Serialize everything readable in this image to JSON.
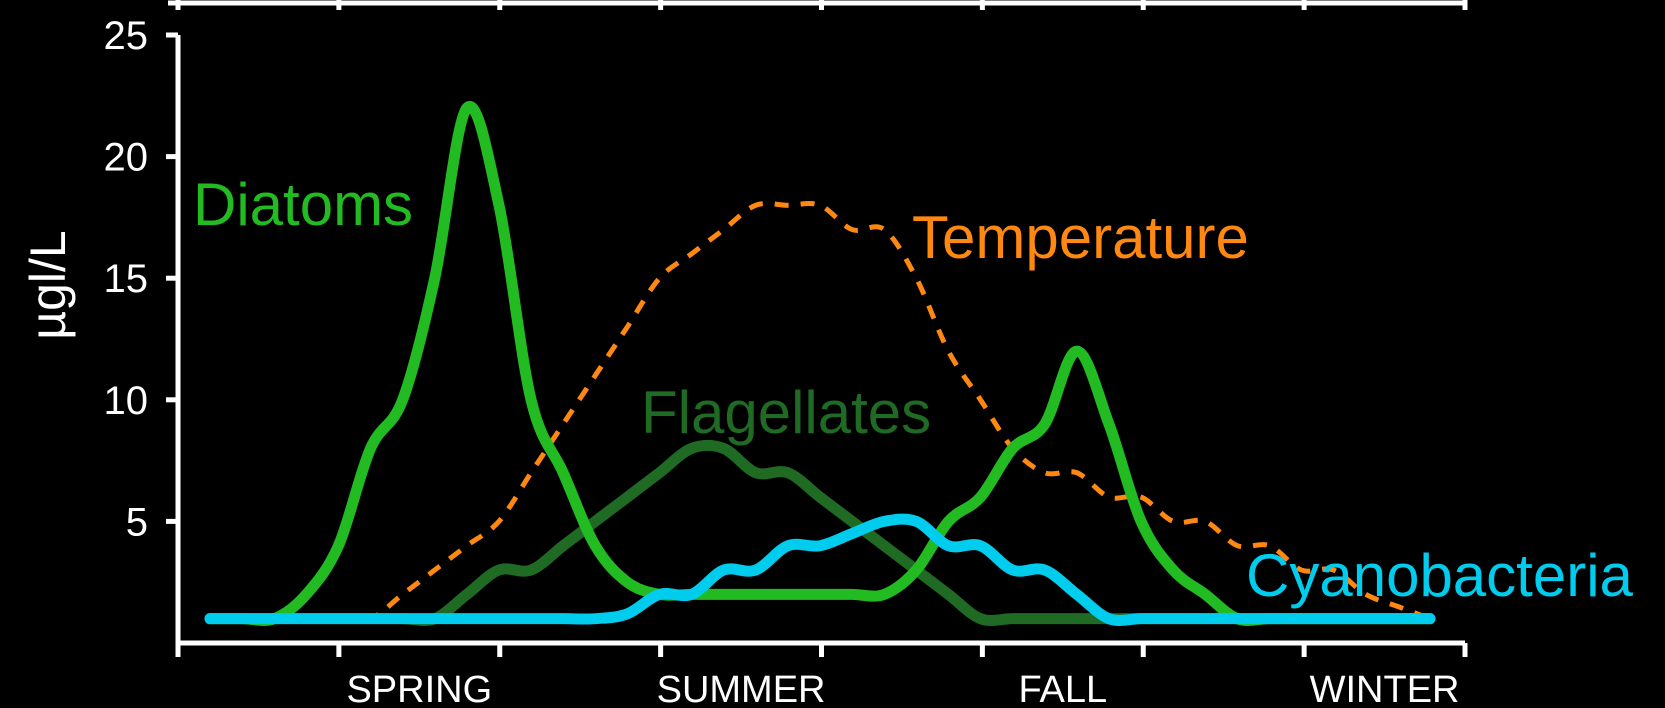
{
  "chart_data": {
    "type": "line",
    "ylabel": "µgl/L",
    "xlabel": "",
    "ylim": [
      0,
      25
    ],
    "yticks": [
      5,
      10,
      15,
      20,
      25
    ],
    "categories": [
      "SPRING",
      "SUMMER",
      "FALL",
      "WINTER"
    ],
    "x": [
      0,
      1,
      2,
      3,
      4,
      5,
      6,
      7,
      8,
      9,
      10,
      11,
      12,
      13,
      14,
      15,
      16,
      17,
      18,
      19,
      20,
      21,
      22,
      23,
      24,
      25,
      26,
      27,
      28,
      29,
      30,
      31,
      32,
      33,
      34,
      35,
      36,
      37,
      38
    ],
    "series": [
      {
        "name": "Diatoms",
        "color": "#22bb22",
        "style": "solid",
        "values": [
          1,
          1,
          1,
          2,
          4,
          8,
          10,
          15,
          22,
          18,
          10,
          7,
          4,
          2.5,
          2,
          2,
          2,
          2,
          2,
          2,
          2,
          2,
          3,
          5,
          6,
          8,
          9,
          12,
          9,
          5,
          3,
          2,
          1,
          1,
          1,
          1,
          1,
          1,
          1
        ]
      },
      {
        "name": "Flagellates",
        "color": "#1f6b24",
        "style": "solid",
        "values": [
          1,
          1,
          1,
          1,
          1,
          1,
          1,
          1,
          2,
          3,
          3,
          4,
          5,
          6,
          7,
          8,
          8,
          7,
          7,
          6,
          5,
          4,
          3,
          2,
          1,
          1,
          1,
          1,
          1,
          1,
          1,
          1,
          1,
          1,
          1,
          1,
          1,
          1,
          1
        ]
      },
      {
        "name": "Cyanobacteria",
        "color": "#00ccee",
        "style": "solid",
        "values": [
          1,
          1,
          1,
          1,
          1,
          1,
          1,
          1,
          1,
          1,
          1,
          1,
          1,
          1.2,
          2,
          2,
          3,
          3,
          4,
          4,
          4.5,
          5,
          5,
          4,
          4,
          3,
          3,
          2,
          1,
          1,
          1,
          1,
          1,
          1,
          1,
          1,
          1,
          1,
          1
        ]
      },
      {
        "name": "Temperature",
        "color": "#ff8811",
        "style": "dashed",
        "values": [
          1,
          1,
          1,
          1,
          1,
          1,
          2,
          3,
          4,
          5,
          7,
          9,
          11,
          13,
          15,
          16,
          17,
          18,
          18,
          18,
          17,
          17,
          15,
          12,
          10,
          8,
          7,
          7,
          6,
          6,
          5,
          5,
          4,
          4,
          3,
          3,
          2,
          1.5,
          1
        ]
      }
    ],
    "grid": false,
    "legend": "inline labels"
  }
}
